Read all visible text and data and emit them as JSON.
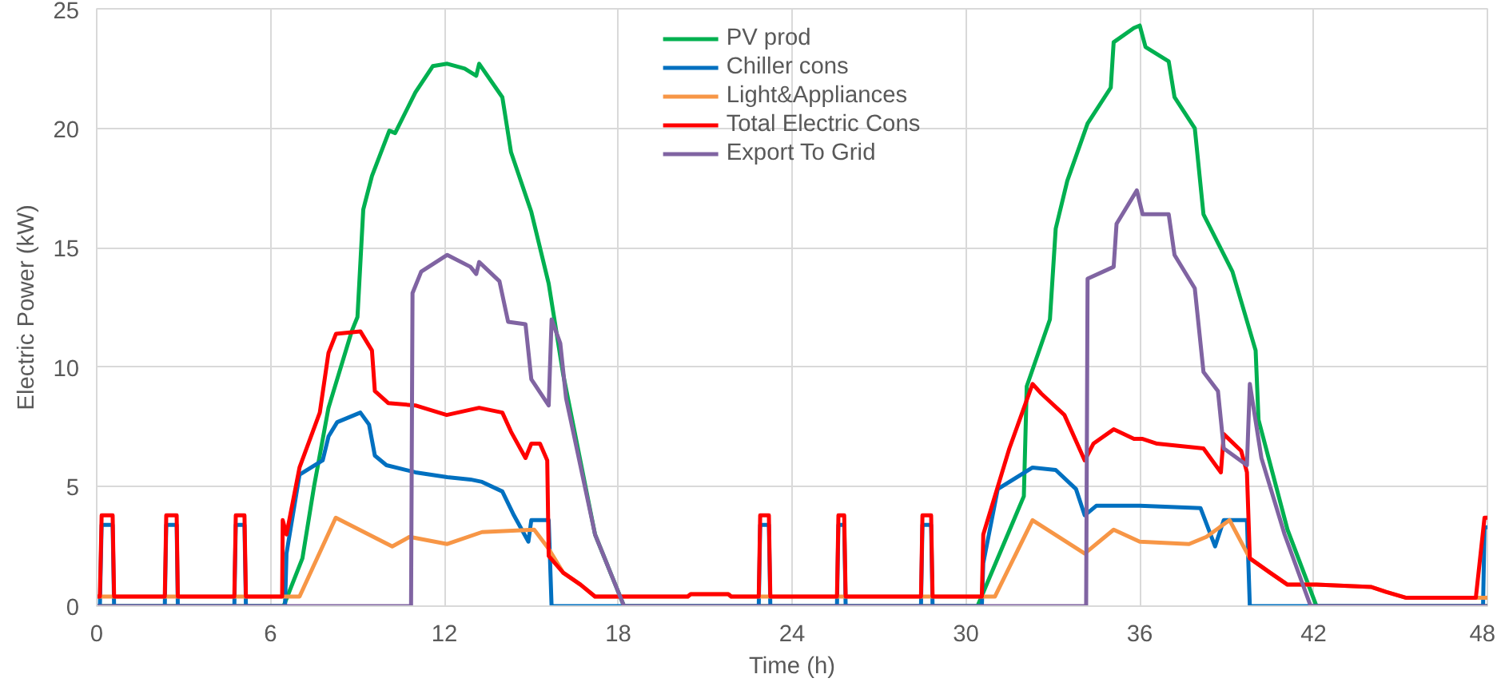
{
  "chart_data": {
    "type": "line",
    "xlabel": "Time (h)",
    "ylabel": "Electric Power (kW)",
    "xlim": [
      0,
      48
    ],
    "xticks": [
      0,
      6,
      12,
      18,
      24,
      30,
      36,
      42,
      48
    ],
    "ylim": [
      0,
      25
    ],
    "yticks": [
      0,
      5,
      10,
      15,
      20,
      25
    ],
    "grid": true,
    "legend": "top",
    "line_style": "solid",
    "marker": "none",
    "series": [
      {
        "name": "PV prod",
        "color": "#00b050",
        "x": [
          0,
          6.45,
          7.1,
          7.5,
          8.0,
          8.8,
          9.0,
          9.2,
          9.5,
          10.1,
          10.3,
          11.0,
          11.6,
          12.1,
          12.7,
          13.1,
          13.2,
          14.0,
          14.3,
          15.0,
          15.6,
          16.1,
          17.2,
          18.2,
          30.4,
          32.0,
          32.1,
          32.9,
          33.1,
          33.5,
          34.2,
          35.0,
          35.1,
          35.8,
          36.0,
          36.2,
          37.0,
          37.2,
          37.9,
          38.2,
          39.2,
          40.0,
          40.1,
          41.1,
          42.1,
          48
        ],
        "values": [
          0,
          0,
          2.0,
          5.0,
          8.3,
          11.5,
          12.1,
          16.6,
          18.0,
          19.9,
          19.8,
          21.5,
          22.6,
          22.7,
          22.5,
          22.2,
          22.7,
          21.3,
          19.0,
          16.5,
          13.5,
          9.7,
          3.0,
          0,
          0,
          4.6,
          9.2,
          12.0,
          15.8,
          17.8,
          20.2,
          21.7,
          23.6,
          24.2,
          24.3,
          23.4,
          22.8,
          21.3,
          20.0,
          16.4,
          14.0,
          10.7,
          7.8,
          3.2,
          0,
          0
        ]
      },
      {
        "name": "Chiller cons",
        "color": "#0070c0",
        "x": [
          0,
          0.11,
          0.17,
          0.55,
          0.6,
          2.35,
          2.4,
          2.76,
          2.8,
          4.75,
          4.8,
          5.1,
          5.15,
          6.5,
          6.55,
          7.0,
          7.8,
          8.0,
          8.3,
          9.1,
          9.4,
          9.6,
          10.0,
          11.0,
          12.1,
          12.9,
          13.3,
          14.0,
          14.4,
          14.9,
          15.0,
          15.6,
          15.7,
          22.85,
          22.9,
          23.2,
          23.25,
          25.55,
          25.6,
          25.8,
          25.85,
          28.45,
          28.5,
          28.8,
          28.85,
          30.55,
          30.6,
          31.1,
          32.3,
          33.1,
          33.8,
          34.1,
          34.5,
          36.0,
          38.1,
          38.6,
          38.9,
          39.7,
          39.8,
          47.85,
          47.9,
          48
        ],
        "values": [
          0,
          0,
          3.4,
          3.4,
          0,
          0,
          3.4,
          3.4,
          0,
          0,
          3.4,
          3.4,
          0,
          0,
          2.2,
          5.5,
          6.1,
          7.1,
          7.7,
          8.1,
          7.6,
          6.3,
          5.9,
          5.6,
          5.4,
          5.3,
          5.2,
          4.8,
          3.8,
          2.7,
          3.6,
          3.6,
          0,
          0,
          3.4,
          3.4,
          0,
          0,
          3.4,
          3.4,
          0,
          0,
          3.4,
          3.4,
          0,
          0,
          1.8,
          4.9,
          5.8,
          5.7,
          4.9,
          3.8,
          4.2,
          4.2,
          4.1,
          2.5,
          3.6,
          3.6,
          0,
          0,
          3.3,
          3.3
        ]
      },
      {
        "name": "Light&Appliances",
        "color": "#f79646",
        "x": [
          0,
          7.0,
          8.25,
          8.9,
          10.2,
          10.8,
          12.1,
          13.3,
          15.1,
          15.6,
          16.1,
          16.7,
          17.2,
          20.4,
          20.5,
          21.8,
          21.9,
          31.0,
          32.3,
          34.1,
          35.1,
          36.0,
          37.7,
          38.3,
          39.1,
          39.8,
          40.5,
          41.1,
          42.1,
          44.0,
          44.5,
          45.2,
          48
        ],
        "values": [
          0.4,
          0.4,
          3.7,
          3.3,
          2.5,
          2.9,
          2.6,
          3.1,
          3.2,
          2.4,
          1.4,
          0.9,
          0.4,
          0.4,
          0.5,
          0.5,
          0.4,
          0.4,
          3.6,
          2.2,
          3.2,
          2.7,
          2.6,
          2.9,
          3.6,
          2.0,
          1.4,
          0.9,
          0.9,
          0.8,
          0.6,
          0.35,
          0.35
        ]
      },
      {
        "name": "Total Electric Cons",
        "color": "#ff0000",
        "x": [
          0,
          0.11,
          0.17,
          0.55,
          0.6,
          2.35,
          2.4,
          2.76,
          2.8,
          4.75,
          4.8,
          5.1,
          5.15,
          6.4,
          6.42,
          6.55,
          7.0,
          7.7,
          8.0,
          8.26,
          9.1,
          9.5,
          9.6,
          10.06,
          11.0,
          12.08,
          13.2,
          14.0,
          14.3,
          14.8,
          15.0,
          15.3,
          15.55,
          15.6,
          16.1,
          16.7,
          17.2,
          20.4,
          20.5,
          21.8,
          21.9,
          22.85,
          22.9,
          23.2,
          23.25,
          25.55,
          25.6,
          25.8,
          25.85,
          28.45,
          28.5,
          28.8,
          28.85,
          30.55,
          30.6,
          31.1,
          31.5,
          32.3,
          32.6,
          33.4,
          34.1,
          34.4,
          35.1,
          35.8,
          36.1,
          36.6,
          38.2,
          38.8,
          38.9,
          39.5,
          39.7,
          39.8,
          40.5,
          41.1,
          42.1,
          44.0,
          44.5,
          45.2,
          47.6,
          47.9,
          48
        ],
        "values": [
          0.4,
          0.4,
          3.8,
          3.8,
          0.4,
          0.4,
          3.8,
          3.8,
          0.4,
          0.4,
          3.8,
          3.8,
          0.4,
          0.4,
          3.6,
          3.0,
          5.8,
          8.1,
          10.6,
          11.4,
          11.5,
          10.7,
          9.0,
          8.5,
          8.4,
          8.0,
          8.3,
          8.1,
          7.3,
          6.2,
          6.8,
          6.8,
          6.1,
          2.1,
          1.4,
          0.9,
          0.4,
          0.4,
          0.5,
          0.5,
          0.4,
          0.4,
          3.8,
          3.8,
          0.4,
          0.4,
          3.8,
          3.8,
          0.4,
          0.4,
          3.8,
          3.8,
          0.4,
          0.4,
          3.0,
          5.0,
          6.6,
          9.3,
          8.9,
          8.0,
          6.1,
          6.8,
          7.4,
          7.0,
          7.0,
          6.8,
          6.6,
          5.6,
          7.2,
          6.5,
          5.6,
          2.0,
          1.4,
          0.9,
          0.9,
          0.8,
          0.6,
          0.35,
          0.35,
          3.7,
          3.7
        ]
      },
      {
        "name": "Export To Grid",
        "color": "#8064a2",
        "x": [
          0,
          10.85,
          10.9,
          11.2,
          12.1,
          12.9,
          13.1,
          13.2,
          13.9,
          14.2,
          14.8,
          15.0,
          15.6,
          15.7,
          16.0,
          16.2,
          17.2,
          18.2,
          34.15,
          34.2,
          35.1,
          35.2,
          35.9,
          36.1,
          37.0,
          37.2,
          37.9,
          38.2,
          38.7,
          38.9,
          39.7,
          39.8,
          40.2,
          41.0,
          41.9,
          48
        ],
        "values": [
          0,
          0,
          13.1,
          14.0,
          14.7,
          14.2,
          13.9,
          14.4,
          13.6,
          11.9,
          11.8,
          9.5,
          8.4,
          12.0,
          11.0,
          8.7,
          3.0,
          0,
          0,
          13.7,
          14.2,
          16.0,
          17.4,
          16.4,
          16.4,
          14.7,
          13.3,
          9.8,
          9.0,
          6.6,
          5.9,
          9.3,
          6.2,
          3.0,
          0,
          0
        ]
      }
    ]
  }
}
